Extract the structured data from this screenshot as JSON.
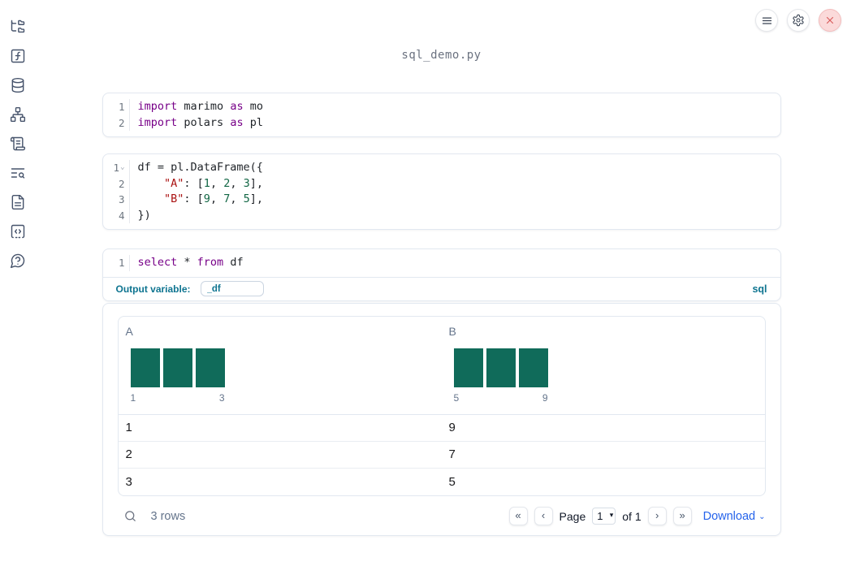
{
  "colors": {
    "accent_teal": "#0e7490",
    "histogram_bar": "#106b5a",
    "download_blue": "#2563eb",
    "close_red": "#d95d5d",
    "syntax_keyword": "#770088",
    "syntax_string": "#aa1111",
    "syntax_number": "#116644"
  },
  "icons": {
    "first_page_glyph": "«",
    "previous_page_glyph": "‹",
    "next_page_glyph": "›",
    "last_page_glyph": "»",
    "select_caret_glyph": "▾",
    "download_caret_glyph": "⌄",
    "fold_chevron_glyph": "⌄"
  },
  "sidebar": {
    "icons": [
      "file-tree",
      "function",
      "database",
      "network",
      "scroll",
      "list-search",
      "document",
      "code-snippet",
      "help"
    ]
  },
  "notebook": {
    "filename": "sql_demo.py",
    "cells": [
      {
        "lines": [
          {
            "n": "1",
            "tokens": [
              [
                "kw",
                "import"
              ],
              [
                "pl",
                " marimo "
              ],
              [
                "kw",
                "as"
              ],
              [
                "pl",
                " mo"
              ]
            ]
          },
          {
            "n": "2",
            "tokens": [
              [
                "kw",
                "import"
              ],
              [
                "pl",
                " polars "
              ],
              [
                "kw",
                "as"
              ],
              [
                "pl",
                " pl"
              ]
            ]
          }
        ]
      },
      {
        "lines": [
          {
            "n": "1",
            "fold": true,
            "tokens": [
              [
                "pl",
                "df = pl.DataFrame({"
              ]
            ]
          },
          {
            "n": "2",
            "tokens": [
              [
                "pl",
                "    "
              ],
              [
                "str",
                "\"A\""
              ],
              [
                "pl",
                ": ["
              ],
              [
                "num",
                "1"
              ],
              [
                "pl",
                ", "
              ],
              [
                "num",
                "2"
              ],
              [
                "pl",
                ", "
              ],
              [
                "num",
                "3"
              ],
              [
                "pl",
                "],"
              ]
            ]
          },
          {
            "n": "3",
            "tokens": [
              [
                "pl",
                "    "
              ],
              [
                "str",
                "\"B\""
              ],
              [
                "pl",
                ": ["
              ],
              [
                "num",
                "9"
              ],
              [
                "pl",
                ", "
              ],
              [
                "num",
                "7"
              ],
              [
                "pl",
                ", "
              ],
              [
                "num",
                "5"
              ],
              [
                "pl",
                "],"
              ]
            ]
          },
          {
            "n": "4",
            "tokens": [
              [
                "pl",
                "})"
              ]
            ]
          }
        ]
      },
      {
        "lines": [
          {
            "n": "1",
            "tokens": [
              [
                "kw",
                "select"
              ],
              [
                "pl",
                " * "
              ],
              [
                "kw",
                "from"
              ],
              [
                "pl",
                " df"
              ]
            ]
          }
        ],
        "output_variable_label": "Output variable:",
        "output_variable_value": "_df",
        "language_badge": "sql"
      }
    ]
  },
  "table": {
    "columns": [
      {
        "name": "A",
        "histogram": {
          "bar_heights": [
            1,
            1,
            1
          ],
          "min_label": "1",
          "max_label": "3"
        }
      },
      {
        "name": "B",
        "histogram": {
          "bar_heights": [
            1,
            1,
            1
          ],
          "min_label": "5",
          "max_label": "9"
        }
      }
    ],
    "rows": [
      [
        "1",
        "9"
      ],
      [
        "2",
        "7"
      ],
      [
        "3",
        "5"
      ]
    ],
    "footer": {
      "row_count": "3 rows",
      "page_label": "Page",
      "page_value": "1",
      "of_label": "of 1",
      "download_label": "Download"
    }
  }
}
